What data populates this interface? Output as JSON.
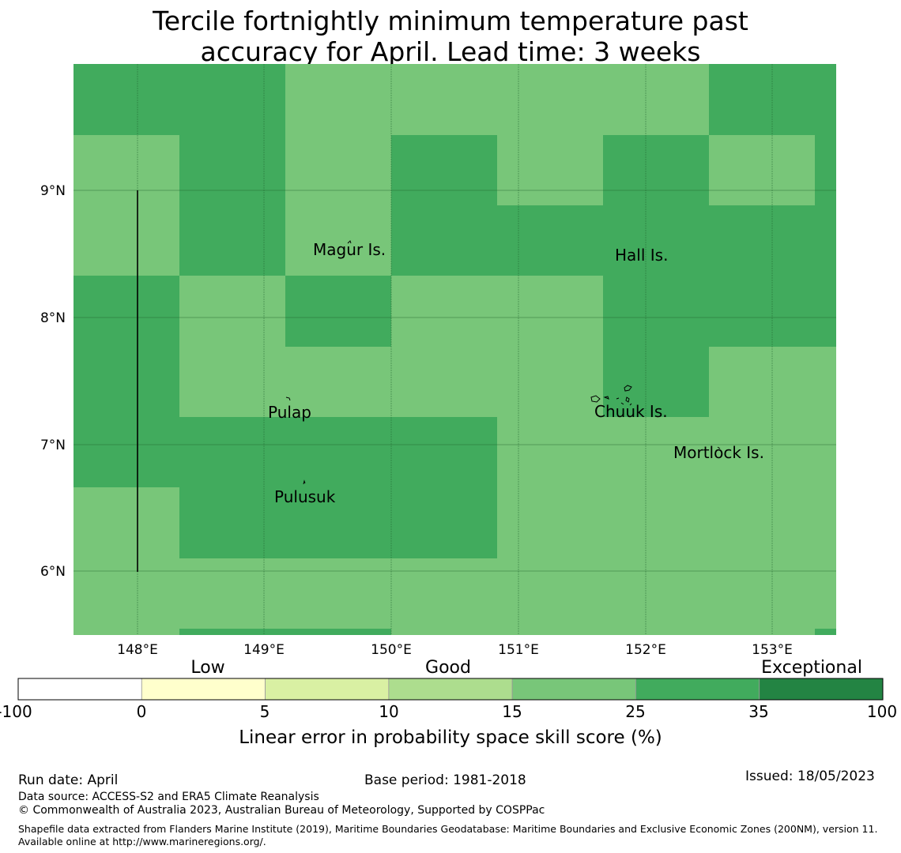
{
  "title": {
    "line1": "Tercile fortnightly minimum temperature past",
    "line2": "accuracy for April. Lead time: 3 weeks"
  },
  "map": {
    "lat_labels": [
      "9°N",
      "8°N",
      "7°N",
      "6°N"
    ],
    "lon_labels": [
      "148°E",
      "149°E",
      "150°E",
      "151°E",
      "152°E",
      "153°E"
    ],
    "places": [
      "Magur Is.",
      "Hall Is.",
      "Pulap",
      "Chuuk Is.",
      "Mortlock Is.",
      "Pulusuk"
    ],
    "cell_colors": {
      "light": "#78c679",
      "dark": "#41ab5d"
    }
  },
  "legend": {
    "categories": [
      "Low",
      "Good",
      "Exceptional"
    ],
    "ticks": [
      "-100",
      "0",
      "5",
      "10",
      "15",
      "25",
      "35",
      "100"
    ],
    "colors": [
      "#ffffff",
      "#ffffcc",
      "#d9f0a3",
      "#addd8e",
      "#78c679",
      "#41ab5d",
      "#238443"
    ],
    "label": "Linear error in probability space skill score (%)"
  },
  "footer": {
    "run_date": "Run date: April",
    "base_period": "Base period: 1981-2018",
    "issued": "Issued: 18/05/2023",
    "data_source": "Data source: ACCESS-S2 and ERA5 Climate Reanalysis",
    "copyright": "© Commonwealth of Australia 2023, Australian Bureau of Meteorology, Supported by COSPPac",
    "shapefile": "Shapefile data extracted from Flanders Marine Institute (2019), Maritime Boundaries Geodatabase: Maritime Boundaries and Exclusive Economic Zones (200NM), version 11. Available online at http://www.marineregions.org/."
  }
}
